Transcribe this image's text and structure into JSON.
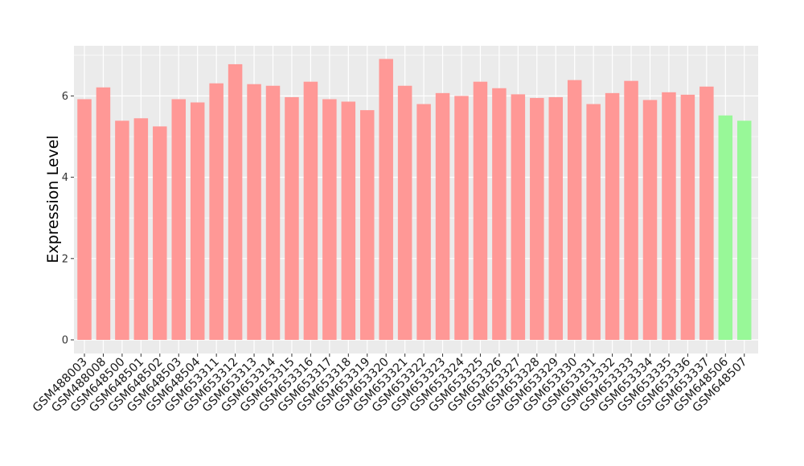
{
  "chart_data": {
    "type": "bar",
    "title": "",
    "xlabel": "",
    "ylabel": "Expression Level",
    "ylim": [
      0,
      7.2
    ],
    "yticks": [
      0,
      2,
      4,
      6
    ],
    "grid": true,
    "legend": "none",
    "colors": {
      "group_a": "#ff9896",
      "group_b": "#98f898",
      "panel_bg": "#ebebeb",
      "grid": "#ffffff",
      "tick": "#333333"
    },
    "categories": [
      "GSM488003",
      "GSM488008",
      "GSM648500",
      "GSM648501",
      "GSM648502",
      "GSM648503",
      "GSM648504",
      "GSM653311",
      "GSM653312",
      "GSM653313",
      "GSM653314",
      "GSM653315",
      "GSM653316",
      "GSM653317",
      "GSM653318",
      "GSM653319",
      "GSM653320",
      "GSM653321",
      "GSM653322",
      "GSM653323",
      "GSM653324",
      "GSM653325",
      "GSM653326",
      "GSM653327",
      "GSM653328",
      "GSM653329",
      "GSM653330",
      "GSM653331",
      "GSM653332",
      "GSM653333",
      "GSM653334",
      "GSM653335",
      "GSM653336",
      "GSM653337",
      "GSM648506",
      "GSM648507"
    ],
    "values": [
      5.92,
      6.21,
      5.39,
      5.45,
      5.25,
      5.92,
      5.84,
      6.31,
      6.78,
      6.29,
      6.25,
      5.97,
      6.35,
      5.92,
      5.86,
      5.65,
      6.91,
      6.25,
      5.8,
      6.07,
      6.0,
      6.35,
      6.19,
      6.04,
      5.95,
      5.97,
      6.39,
      5.8,
      6.07,
      6.37,
      5.9,
      6.09,
      6.03,
      6.23,
      5.52,
      5.39
    ],
    "groups": [
      "a",
      "a",
      "a",
      "a",
      "a",
      "a",
      "a",
      "a",
      "a",
      "a",
      "a",
      "a",
      "a",
      "a",
      "a",
      "a",
      "a",
      "a",
      "a",
      "a",
      "a",
      "a",
      "a",
      "a",
      "a",
      "a",
      "a",
      "a",
      "a",
      "a",
      "a",
      "a",
      "a",
      "a",
      "b",
      "b"
    ]
  }
}
